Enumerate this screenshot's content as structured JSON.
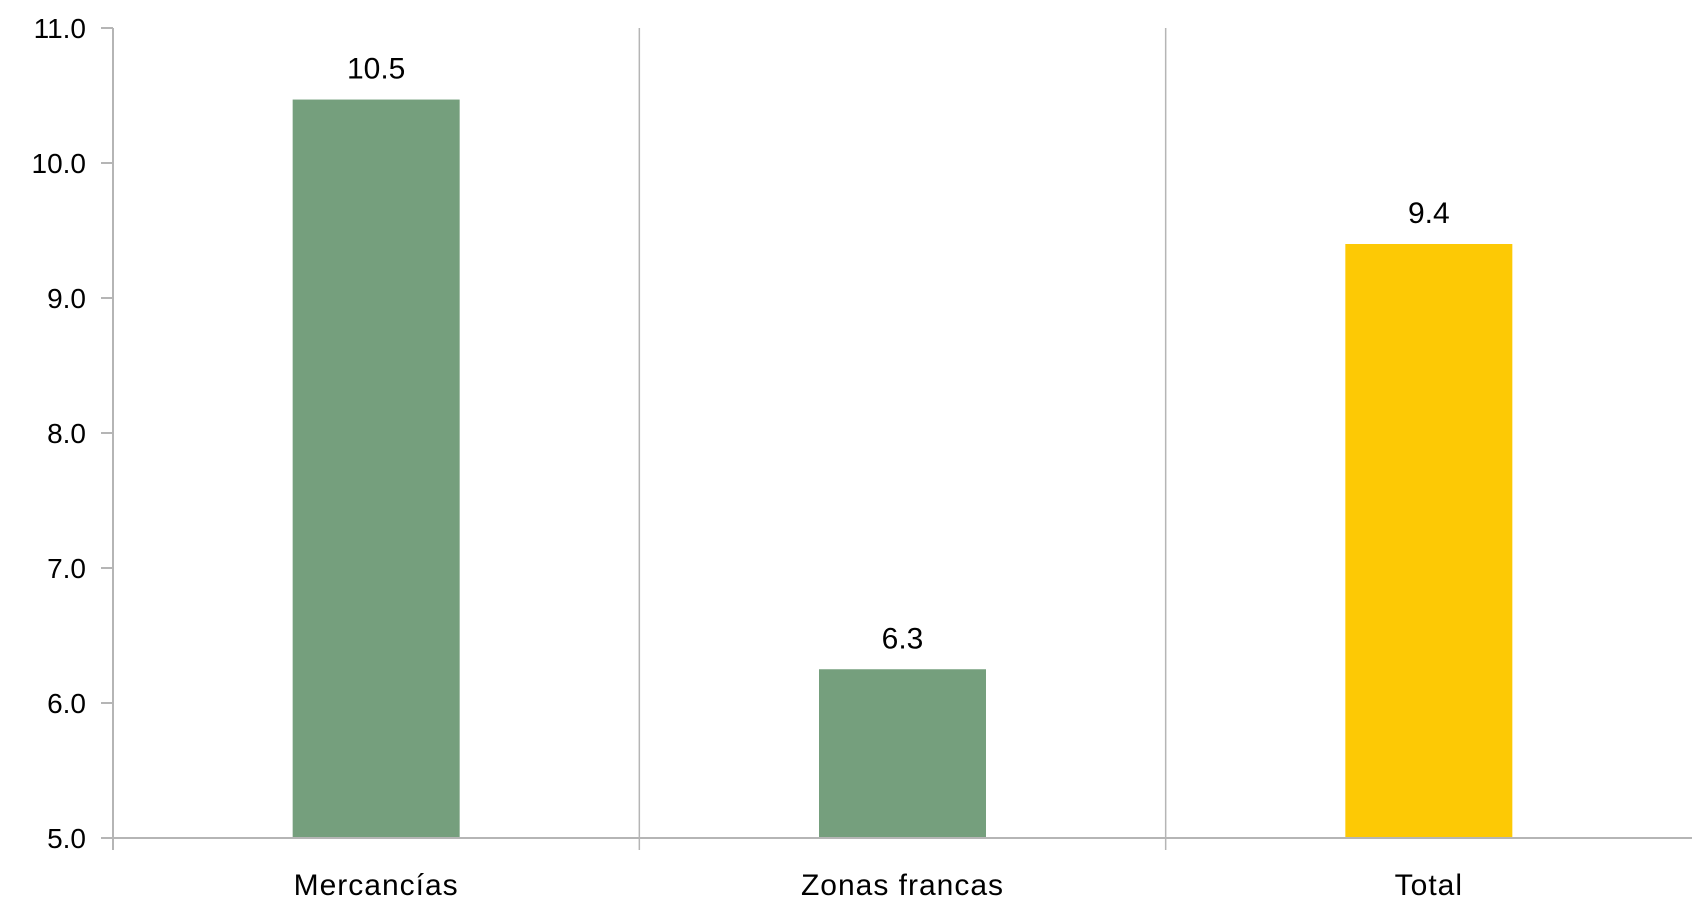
{
  "chart_data": {
    "type": "bar",
    "title": "",
    "xlabel": "",
    "ylabel": "",
    "categories": [
      "Mercancías",
      "Zonas francas",
      "Total"
    ],
    "values": [
      10.47,
      6.25,
      9.4
    ],
    "data_labels": [
      "10.5",
      "6.3",
      "9.4"
    ],
    "bar_colors": [
      "#759f7d",
      "#759f7d",
      "#fdc905"
    ],
    "ylim": [
      5.0,
      11.0
    ],
    "yticks": [
      5.0,
      6.0,
      7.0,
      8.0,
      9.0,
      10.0,
      11.0
    ],
    "ytick_labels": [
      "5.0",
      "6.0",
      "7.0",
      "8.0",
      "9.0",
      "10.0",
      "11.0"
    ],
    "grid": "vertical category separators",
    "legend": "none"
  }
}
